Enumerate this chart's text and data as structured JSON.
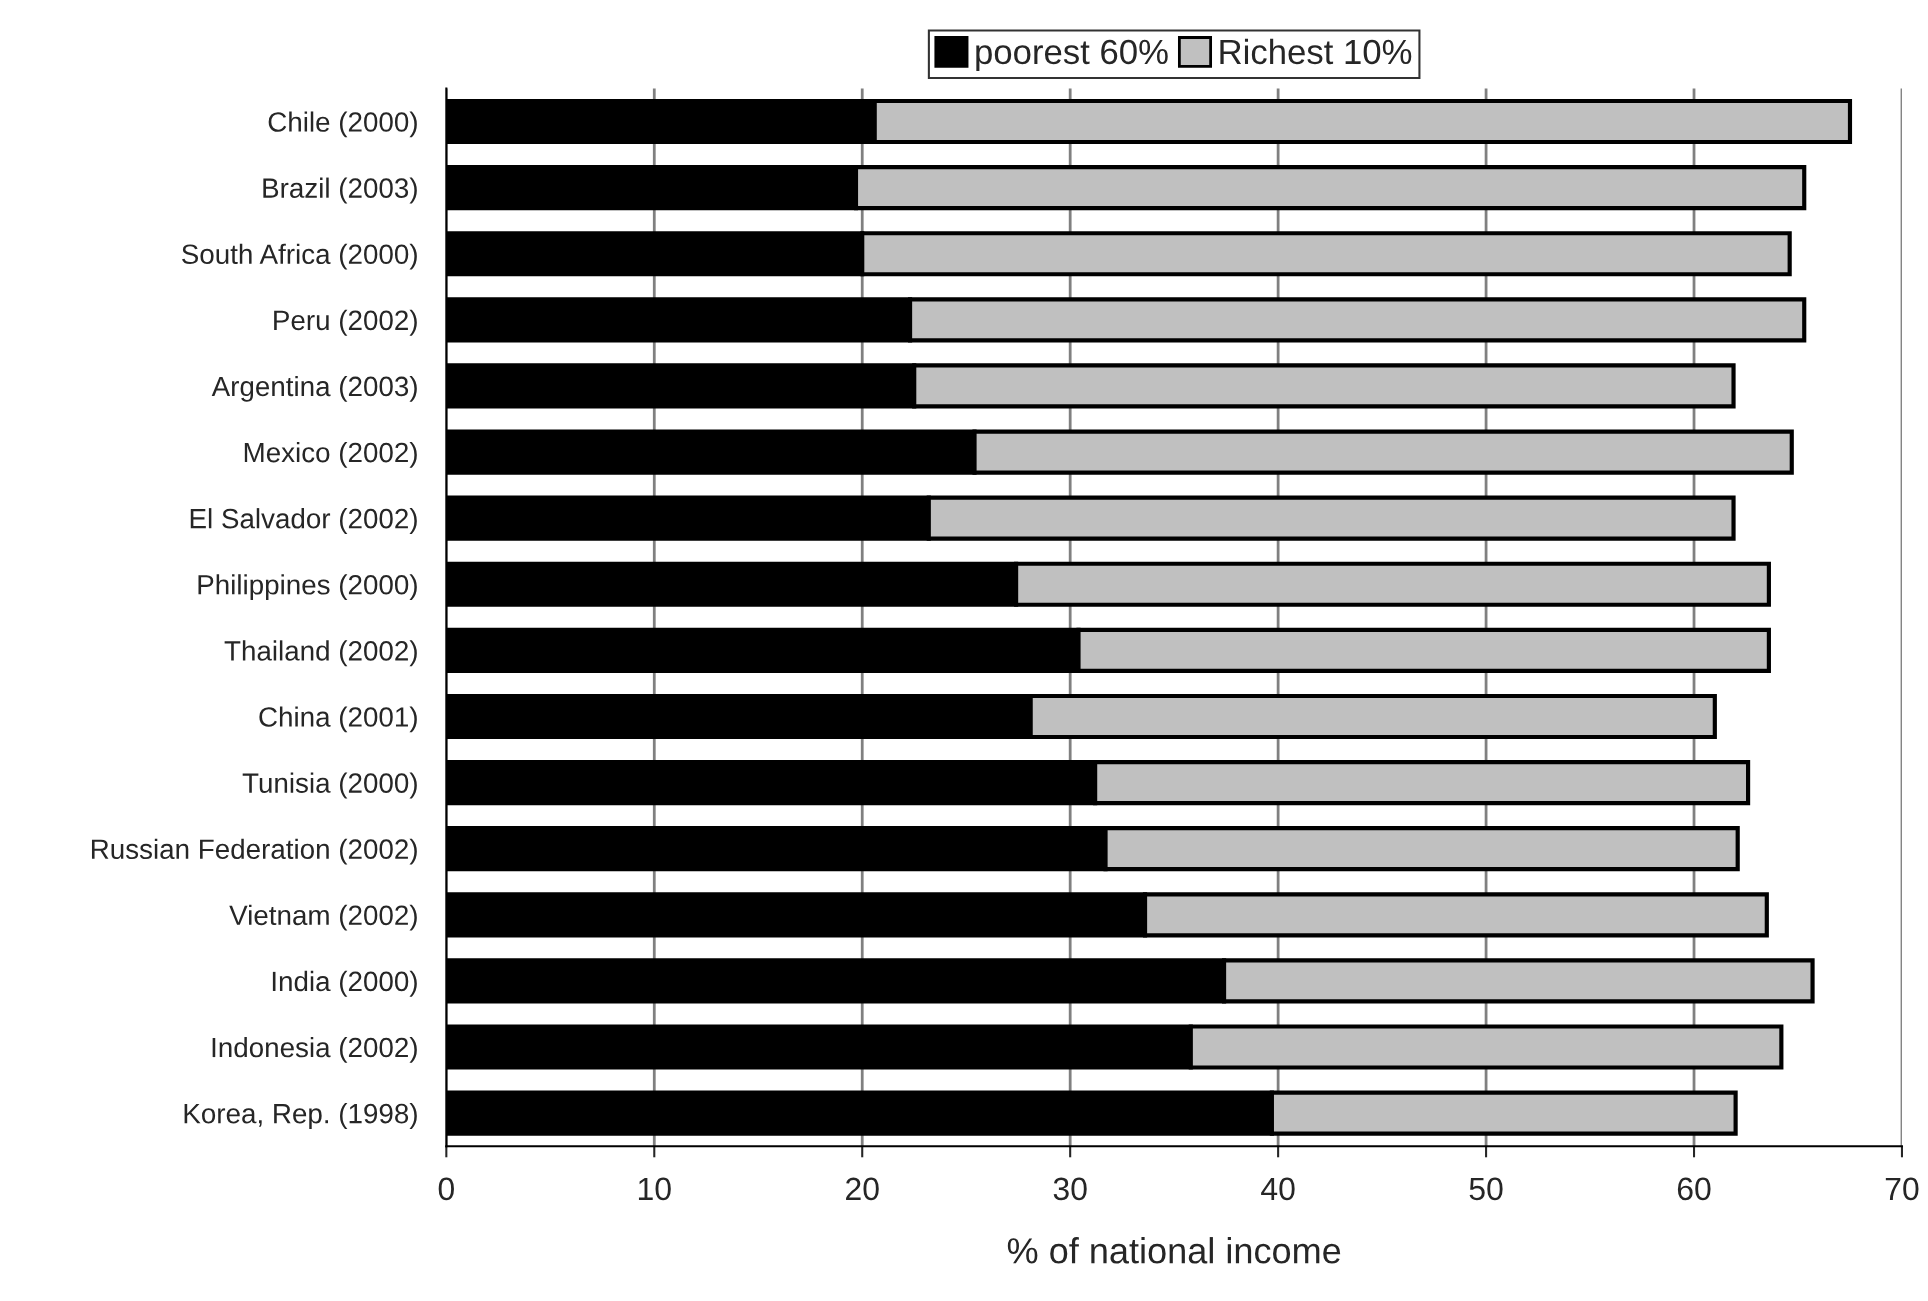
{
  "chart_data": {
    "type": "bar",
    "orientation": "horizontal",
    "stacked": true,
    "xlabel": "% of national income",
    "categories": [
      "Chile (2000)",
      "Brazil (2003)",
      "South Africa (2000)",
      "Peru (2002)",
      "Argentina (2003)",
      "Mexico (2002)",
      "El Salvador (2002)",
      "Philippines (2000)",
      "Thailand (2002)",
      "China (2001)",
      "Tunisia (2000)",
      "Russian Federation (2002)",
      "Vietnam (2002)",
      "India (2000)",
      "Indonesia (2002)",
      "Korea, Rep. (1998)"
    ],
    "series": [
      {
        "name": "poorest 60%",
        "color": "#000000",
        "values": [
          20.6,
          19.7,
          20.0,
          22.3,
          22.5,
          25.4,
          23.2,
          27.4,
          30.4,
          28.1,
          31.2,
          31.7,
          33.6,
          37.4,
          35.8,
          39.7
        ]
      },
      {
        "name": "Richest 10%",
        "color": "#c0c0c0",
        "values": [
          46.9,
          45.6,
          44.6,
          43.0,
          39.4,
          39.3,
          38.7,
          36.2,
          33.2,
          32.9,
          31.4,
          30.4,
          29.9,
          28.3,
          28.4,
          22.3
        ]
      }
    ],
    "xlim": [
      0,
      70
    ],
    "xticks": [
      0,
      10,
      20,
      30,
      40,
      50,
      60,
      70
    ],
    "grid": "x",
    "legend": "top"
  }
}
